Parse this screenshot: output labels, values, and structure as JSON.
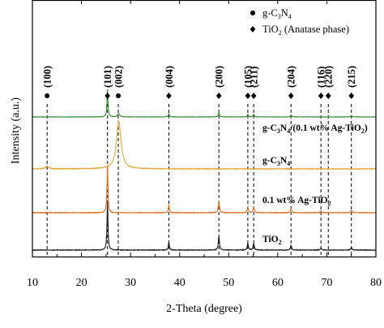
{
  "chart_data": {
    "type": "line",
    "title": "",
    "xlabel": "2-Theta (degree)",
    "ylabel": "Intensity (a.u.)",
    "xlim": [
      10,
      80
    ],
    "x_ticks": [
      10,
      20,
      30,
      40,
      50,
      60,
      70,
      80
    ],
    "y_ticks_shown": false,
    "grid": false,
    "legend": {
      "placement": "top-right",
      "entries": [
        {
          "marker": "circle",
          "text": "g-C",
          "sub1": "3",
          "mid": "N",
          "sub2": "4",
          "tail": ""
        },
        {
          "marker": "diamond",
          "text": "TiO",
          "sub1": "2",
          "mid": " (Anatase phase)",
          "sub2": "",
          "tail": ""
        }
      ]
    },
    "reference_lines": [
      {
        "x": 13.0,
        "plane": "(100)",
        "marker": "circle"
      },
      {
        "x": 25.3,
        "plane": "(101)",
        "marker": "diamond"
      },
      {
        "x": 27.5,
        "plane": "(002)",
        "marker": "circle"
      },
      {
        "x": 37.8,
        "plane": "(004)",
        "marker": "diamond"
      },
      {
        "x": 48.0,
        "plane": "(200)",
        "marker": "diamond"
      },
      {
        "x": 53.9,
        "plane": "(105)",
        "marker": "diamond"
      },
      {
        "x": 55.1,
        "plane": "(211)",
        "marker": "diamond"
      },
      {
        "x": 62.7,
        "plane": "(204)",
        "marker": "diamond"
      },
      {
        "x": 68.8,
        "plane": "(116)",
        "marker": "diamond"
      },
      {
        "x": 70.3,
        "plane": "(220)",
        "marker": "diamond"
      },
      {
        "x": 75.0,
        "plane": "(215)",
        "marker": "diamond"
      }
    ],
    "series": [
      {
        "label": {
          "text": "g-C",
          "sub1": "3",
          "mid": "N",
          "sub2": "4",
          "tail": "/(0.1 wt% Ag-TiO",
          "sub3": "2",
          "end": ")"
        },
        "color": "#2e8b2e",
        "baseline": 0.0,
        "peaks": [
          {
            "x": 25.3,
            "h": 1.0,
            "w": 0.12
          },
          {
            "x": 27.6,
            "h": 0.12,
            "w": 0.25
          },
          {
            "x": 37.8,
            "h": 0.12,
            "w": 0.12
          },
          {
            "x": 48.0,
            "h": 0.17,
            "w": 0.14
          },
          {
            "x": 53.9,
            "h": 0.09,
            "w": 0.14
          },
          {
            "x": 55.1,
            "h": 0.09,
            "w": 0.14
          },
          {
            "x": 62.7,
            "h": 0.07,
            "w": 0.14
          },
          {
            "x": 75.0,
            "h": 0.05,
            "w": 0.14
          }
        ]
      },
      {
        "label": {
          "text": "g-C",
          "sub1": "3",
          "mid": "N",
          "sub2": "4",
          "tail": "",
          "sub3": "",
          "end": ""
        },
        "color": "#e2a73a",
        "baseline": 0.0,
        "peaks": [
          {
            "x": 13.0,
            "h": 0.05,
            "w": 0.4
          },
          {
            "x": 27.6,
            "h": 0.95,
            "w": 0.55
          }
        ]
      },
      {
        "label": {
          "text": "0.1 wt% Ag-TiO",
          "sub1": "2",
          "mid": "",
          "sub2": "",
          "tail": "",
          "sub3": "",
          "end": ""
        },
        "color": "#e07020",
        "baseline": 0.0,
        "peaks": [
          {
            "x": 25.3,
            "h": 1.0,
            "w": 0.12
          },
          {
            "x": 37.8,
            "h": 0.17,
            "w": 0.12
          },
          {
            "x": 48.0,
            "h": 0.25,
            "w": 0.14
          },
          {
            "x": 53.9,
            "h": 0.12,
            "w": 0.14
          },
          {
            "x": 55.1,
            "h": 0.12,
            "w": 0.14
          },
          {
            "x": 62.7,
            "h": 0.09,
            "w": 0.14
          },
          {
            "x": 68.8,
            "h": 0.04,
            "w": 0.14
          },
          {
            "x": 75.0,
            "h": 0.05,
            "w": 0.14
          }
        ]
      },
      {
        "label": {
          "text": "TiO",
          "sub1": "2",
          "mid": "",
          "sub2": "",
          "tail": "",
          "sub3": "",
          "end": ""
        },
        "color": "#1a1a1a",
        "baseline": 0.0,
        "peaks": [
          {
            "x": 25.3,
            "h": 1.0,
            "w": 0.12
          },
          {
            "x": 37.8,
            "h": 0.17,
            "w": 0.12
          },
          {
            "x": 48.0,
            "h": 0.28,
            "w": 0.14
          },
          {
            "x": 53.9,
            "h": 0.14,
            "w": 0.14
          },
          {
            "x": 55.1,
            "h": 0.14,
            "w": 0.14
          },
          {
            "x": 62.7,
            "h": 0.1,
            "w": 0.14
          },
          {
            "x": 68.8,
            "h": 0.04,
            "w": 0.14
          },
          {
            "x": 75.0,
            "h": 0.06,
            "w": 0.14
          }
        ]
      }
    ]
  }
}
